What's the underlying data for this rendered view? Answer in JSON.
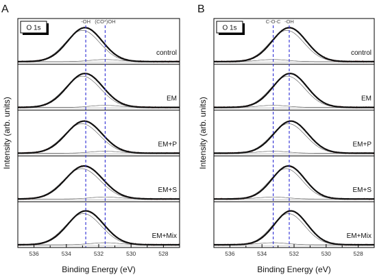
{
  "chart_data": [
    {
      "type": "line",
      "panel_label": "A",
      "badge": "O 1s",
      "xlabel": "Binding Energy (eV)",
      "ylabel": "Intensity (arb. units)",
      "xlim": [
        537,
        527
      ],
      "x_reversed": true,
      "xticks": [
        536,
        534,
        532,
        530,
        528
      ],
      "reference_lines": [
        {
          "label": "-OH",
          "x": 532.8
        },
        {
          "label": "(CO*)OH",
          "x": 531.6
        }
      ],
      "series": [
        {
          "name": "control",
          "peak_center": 532.85,
          "fwhm": 2.5,
          "minor_peak_center": 531.6
        },
        {
          "name": "EM",
          "peak_center": 532.85,
          "fwhm": 2.6,
          "minor_peak_center": 531.6
        },
        {
          "name": "EM+P",
          "peak_center": 532.9,
          "fwhm": 2.6,
          "minor_peak_center": 531.6
        },
        {
          "name": "EM+S",
          "peak_center": 532.9,
          "fwhm": 2.7,
          "minor_peak_center": 531.6
        },
        {
          "name": "EM+Mix",
          "peak_center": 532.8,
          "fwhm": 2.6,
          "minor_peak_center": 531.6
        }
      ]
    },
    {
      "type": "line",
      "panel_label": "B",
      "badge": "O 1s",
      "xlabel": "Binding Energy (eV)",
      "ylabel": "Intensity (arb. units)",
      "xlim": [
        537,
        527
      ],
      "x_reversed": true,
      "xticks": [
        536,
        534,
        532,
        530,
        528
      ],
      "reference_lines": [
        {
          "label": "C-O-C",
          "x": 533.3
        },
        {
          "label": "-OH",
          "x": 532.3
        }
      ],
      "series": [
        {
          "name": "control",
          "peak_center": 532.3,
          "fwhm": 2.5,
          "minor_peak_center": 533.3
        },
        {
          "name": "EM",
          "peak_center": 532.25,
          "fwhm": 2.5,
          "minor_peak_center": 533.3
        },
        {
          "name": "EM+P",
          "peak_center": 532.2,
          "fwhm": 2.5,
          "minor_peak_center": 533.3
        },
        {
          "name": "EM+S",
          "peak_center": 532.35,
          "fwhm": 2.4,
          "minor_peak_center": 533.3
        },
        {
          "name": "EM+Mix",
          "peak_center": 532.2,
          "fwhm": 2.4,
          "minor_peak_center": 533.3
        }
      ]
    }
  ]
}
